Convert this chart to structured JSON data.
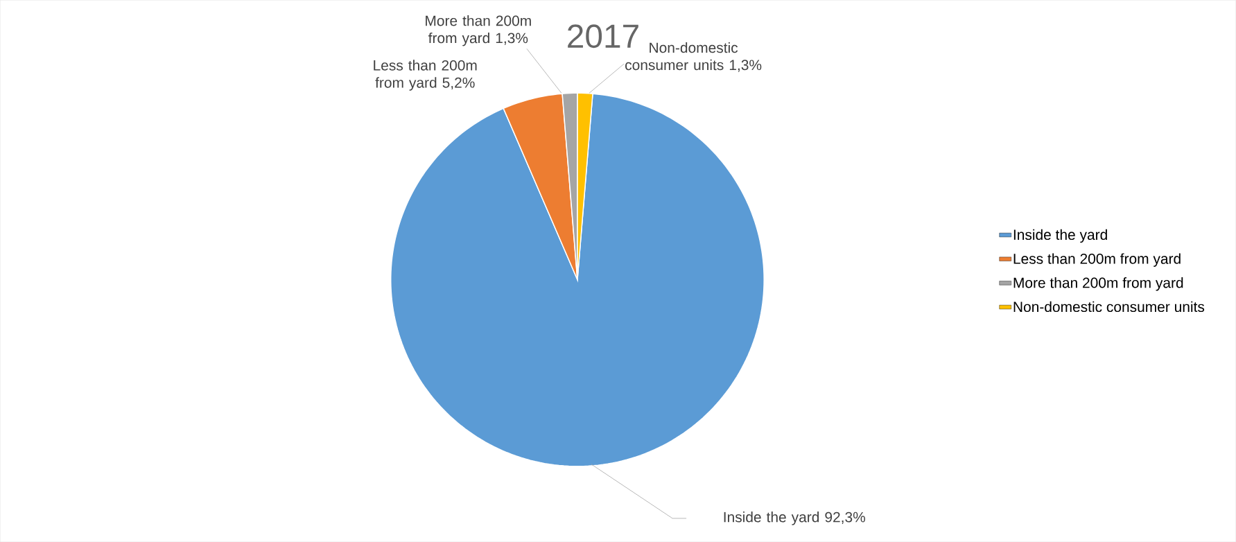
{
  "chart_data": {
    "type": "pie",
    "title": "2017",
    "categories": [
      "Inside the yard",
      "Less than 200m from yard",
      "More than 200m from yard",
      "Non-domestic consumer units"
    ],
    "values": [
      92.3,
      5.2,
      1.3,
      1.3
    ],
    "value_labels": [
      "92,3%",
      "5,2%",
      "1,3%",
      "1,3%"
    ],
    "colors": [
      "#5b9bd5",
      "#ed7d31",
      "#a5a5a5",
      "#ffc000"
    ],
    "legend": "right"
  }
}
